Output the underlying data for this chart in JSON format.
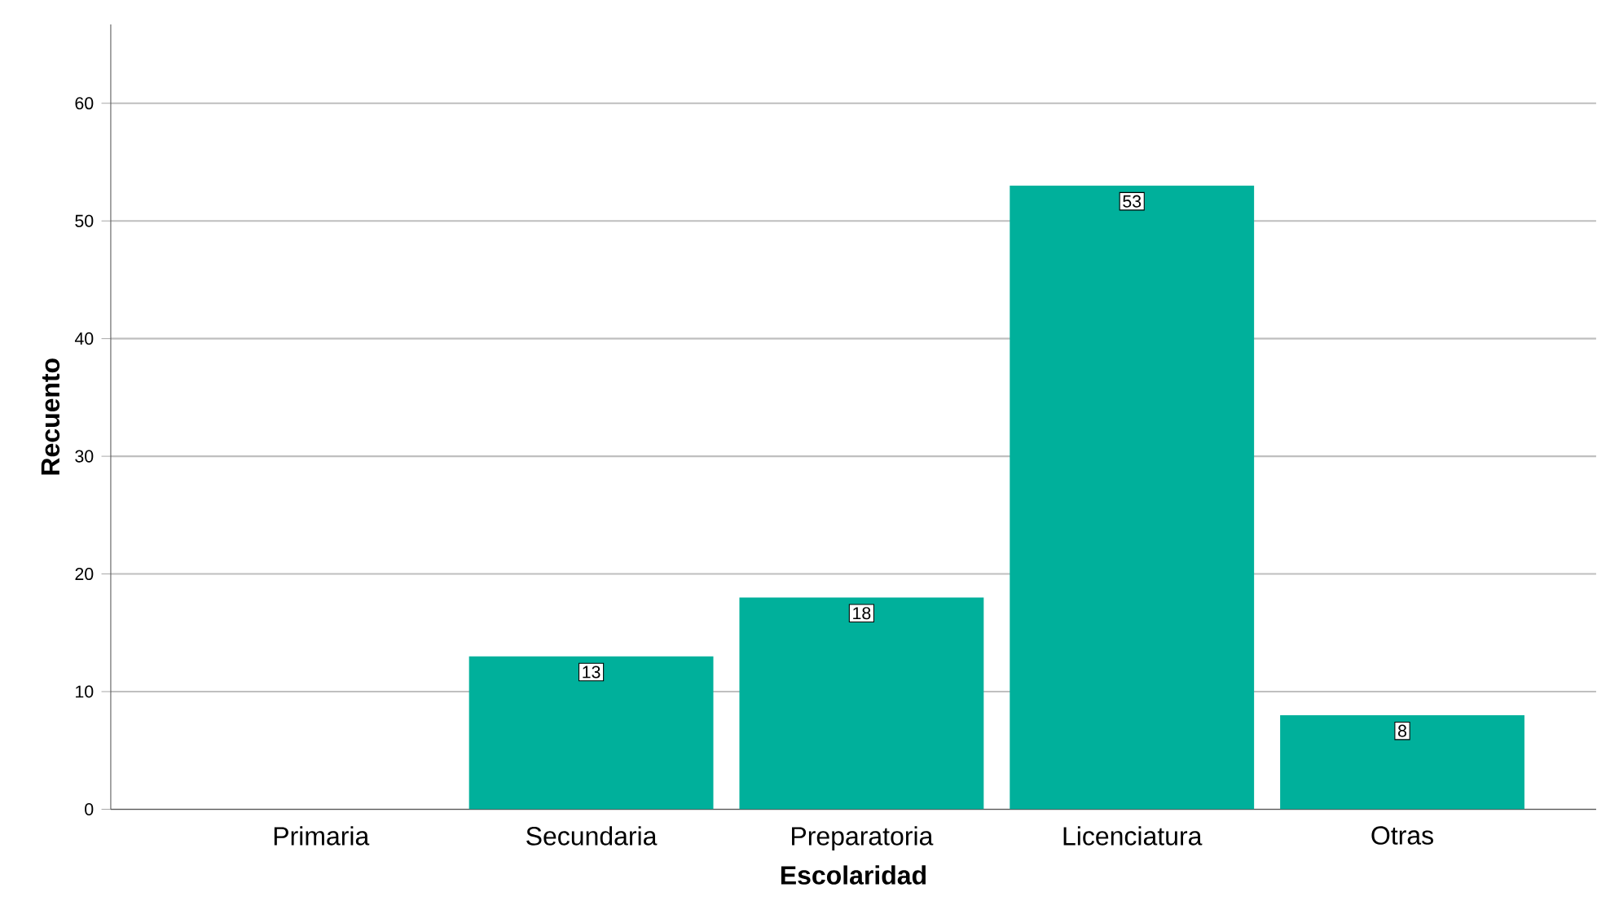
{
  "chart_data": {
    "type": "bar",
    "xlabel": "Escolaridad",
    "ylabel": "Recuento",
    "categories": [
      "Primaria",
      "Secundaria",
      "Preparatoria",
      "Licenciatura",
      "Otras"
    ],
    "values": [
      0,
      13,
      18,
      53,
      8
    ],
    "value_labels": [
      null,
      "13",
      "18",
      "53",
      "8"
    ],
    "color": "#00b09b",
    "ylim": [
      0,
      66.7
    ],
    "yticks": [
      0,
      10,
      20,
      30,
      40,
      50,
      60
    ],
    "grid": "y"
  }
}
